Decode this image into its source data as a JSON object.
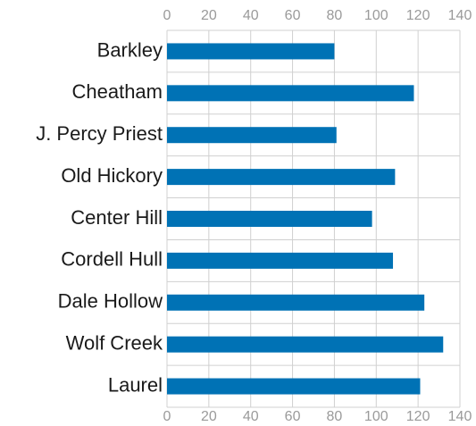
{
  "chart_data": {
    "type": "bar",
    "orientation": "horizontal",
    "categories": [
      "Barkley",
      "Cheatham",
      "J. Percy Priest",
      "Old Hickory",
      "Center Hill",
      "Cordell Hull",
      "Dale Hollow",
      "Wolf Creek",
      "Laurel"
    ],
    "values": [
      80,
      118,
      81,
      109,
      98,
      108,
      123,
      132,
      121
    ],
    "color": "#0072b5",
    "xlim": [
      0,
      140
    ],
    "xticks": [
      0,
      20,
      40,
      60,
      80,
      100,
      120,
      140
    ],
    "grid": true
  }
}
